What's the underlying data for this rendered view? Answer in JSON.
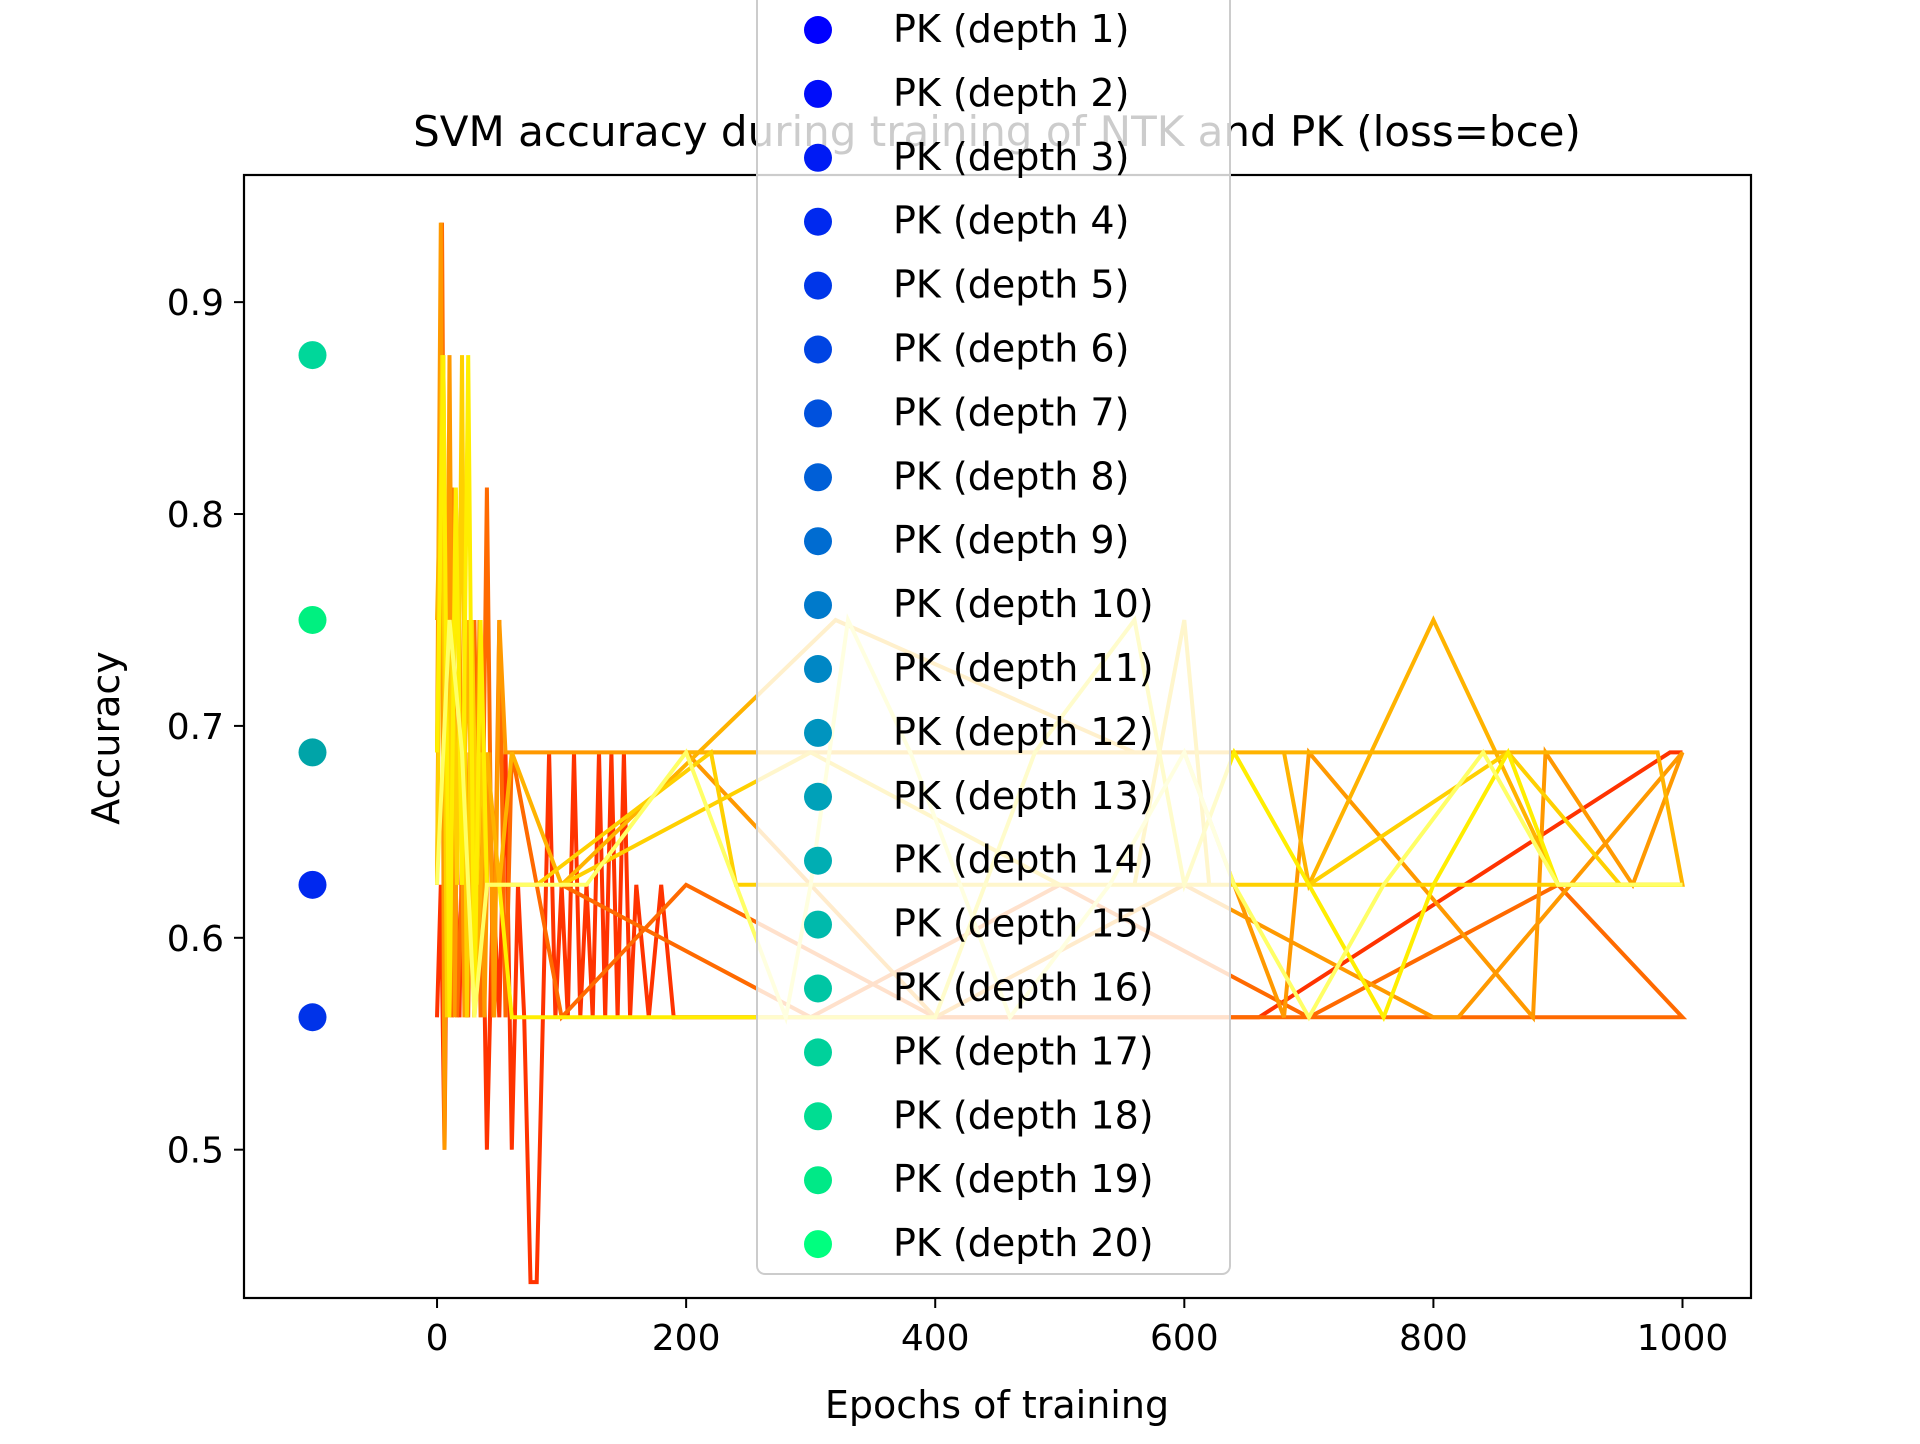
{
  "chart_data": {
    "type": "line",
    "title": "SVM accuracy during training of NTK and PK (loss=bce)",
    "xlabel": "Epochs of training",
    "ylabel": "Accuracy",
    "xlim": [
      -155,
      1055
    ],
    "ylim": [
      0.43,
      0.96
    ],
    "xticks": [
      0,
      200,
      400,
      600,
      800,
      1000
    ],
    "yticks": [
      0.5,
      0.6,
      0.7,
      0.8,
      0.9
    ],
    "grid": false,
    "legend_position": "top-center (overlapping plot)",
    "legend": [
      {
        "label": "PK (depth 1)",
        "color": "#0000ff"
      },
      {
        "label": "PK (depth 2)",
        "color": "#000dfa"
      },
      {
        "label": "PK (depth 3)",
        "color": "#001bf4"
      },
      {
        "label": "PK (depth 4)",
        "color": "#0029ef"
      },
      {
        "label": "PK (depth 5)",
        "color": "#0036e9"
      },
      {
        "label": "PK (depth 6)",
        "color": "#0044e3"
      },
      {
        "label": "PK (depth 7)",
        "color": "#0051dd"
      },
      {
        "label": "PK (depth 8)",
        "color": "#005fd7"
      },
      {
        "label": "PK (depth 9)",
        "color": "#006cd1"
      },
      {
        "label": "PK (depth 10)",
        "color": "#007acb"
      },
      {
        "label": "PK (depth 11)",
        "color": "#0087c5"
      },
      {
        "label": "PK (depth 12)",
        "color": "#0094bf"
      },
      {
        "label": "PK (depth 13)",
        "color": "#00a1b9"
      },
      {
        "label": "PK (depth 14)",
        "color": "#00aeb3"
      },
      {
        "label": "PK (depth 15)",
        "color": "#00baac"
      },
      {
        "label": "PK (depth 16)",
        "color": "#00c6a4"
      },
      {
        "label": "PK (depth 17)",
        "color": "#00d19b"
      },
      {
        "label": "PK (depth 18)",
        "color": "#00dd92"
      },
      {
        "label": "PK (depth 19)",
        "color": "#00e987"
      },
      {
        "label": "PK (depth 20)",
        "color": "#00ff7f"
      }
    ],
    "scatter_points": [
      {
        "x": -100,
        "y": 0.875,
        "color": "#00d79a"
      },
      {
        "x": -100,
        "y": 0.75,
        "color": "#00f080"
      },
      {
        "x": -100,
        "y": 0.6875,
        "color": "#00a4a8"
      },
      {
        "x": -100,
        "y": 0.625,
        "color": "#0028ef"
      },
      {
        "x": -100,
        "y": 0.5625,
        "color": "#0033e9"
      }
    ],
    "series": [
      {
        "color": "#ff3300",
        "x": [
          0,
          3,
          6,
          9,
          12,
          15,
          18,
          21,
          24,
          27,
          30,
          35,
          40,
          45,
          50,
          55,
          60,
          65,
          70,
          75,
          80,
          85,
          90,
          95,
          100,
          105,
          110,
          115,
          120,
          125,
          130,
          135,
          140,
          145,
          150,
          155,
          160,
          170,
          180,
          190,
          660,
          990,
          1000
        ],
        "y": [
          0.5625,
          0.625,
          0.5,
          0.6875,
          0.5625,
          0.625,
          0.5625,
          0.6875,
          0.5625,
          0.625,
          0.5625,
          0.6875,
          0.5,
          0.625,
          0.5625,
          0.6875,
          0.5,
          0.625,
          0.5625,
          0.4375,
          0.4375,
          0.5625,
          0.6875,
          0.5625,
          0.625,
          0.5625,
          0.6875,
          0.5625,
          0.625,
          0.5625,
          0.6875,
          0.5625,
          0.6875,
          0.5625,
          0.6875,
          0.5625,
          0.625,
          0.5625,
          0.625,
          0.5625,
          0.5625,
          0.6875,
          0.6875
        ]
      },
      {
        "color": "#ff6a00",
        "x": [
          0,
          4,
          8,
          12,
          16,
          20,
          25,
          30,
          35,
          40,
          45,
          50,
          55,
          60,
          100,
          200,
          400,
          600,
          800,
          1000,
          900,
          700,
          500,
          300,
          100
        ],
        "y": [
          0.625,
          0.9375,
          0.5625,
          0.8125,
          0.5625,
          0.625,
          0.5625,
          0.75,
          0.5625,
          0.8125,
          0.5625,
          0.75,
          0.5625,
          0.6875,
          0.5625,
          0.625,
          0.5625,
          0.5625,
          0.5625,
          0.5625,
          0.625,
          0.5625,
          0.625,
          0.5625,
          0.625
        ]
      },
      {
        "color": "#ff9900",
        "x": [
          0,
          3,
          6,
          10,
          14,
          18,
          22,
          26,
          30,
          34,
          38,
          42,
          46,
          50,
          55,
          300,
          600,
          680,
          700,
          880,
          890,
          960,
          1000,
          820,
          800,
          600,
          400,
          200,
          100
        ],
        "y": [
          0.6875,
          0.9375,
          0.5,
          0.875,
          0.5625,
          0.75,
          0.5625,
          0.6875,
          0.5625,
          0.75,
          0.5625,
          0.6875,
          0.5625,
          0.75,
          0.6875,
          0.6875,
          0.6875,
          0.5625,
          0.6875,
          0.5625,
          0.6875,
          0.625,
          0.6875,
          0.5625,
          0.5625,
          0.625,
          0.5625,
          0.6875,
          0.6875
        ]
      },
      {
        "color": "#ffb300",
        "x": [
          0,
          5,
          10,
          15,
          20,
          25,
          30,
          40,
          50,
          60,
          100,
          320,
          560,
          680,
          700,
          750,
          800,
          900,
          1000,
          980,
          970,
          900,
          700,
          500,
          200
        ],
        "y": [
          0.75,
          0.875,
          0.5625,
          0.8125,
          0.625,
          0.75,
          0.5625,
          0.6875,
          0.625,
          0.6875,
          0.625,
          0.75,
          0.6875,
          0.6875,
          0.625,
          0.6875,
          0.75,
          0.625,
          0.625,
          0.6875,
          0.6875,
          0.6875,
          0.6875,
          0.6875,
          0.6875
        ]
      },
      {
        "color": "#ffd000",
        "x": [
          0,
          4,
          8,
          12,
          16,
          20,
          24,
          28,
          32,
          36,
          40,
          60,
          80,
          220,
          240,
          330,
          340,
          560,
          600,
          620,
          700,
          800,
          900,
          1000,
          950,
          860,
          700,
          500,
          300,
          100
        ],
        "y": [
          0.625,
          0.875,
          0.5625,
          0.75,
          0.625,
          0.875,
          0.5625,
          0.75,
          0.625,
          0.6875,
          0.625,
          0.625,
          0.625,
          0.6875,
          0.625,
          0.625,
          0.625,
          0.625,
          0.75,
          0.625,
          0.625,
          0.625,
          0.625,
          0.625,
          0.625,
          0.6875,
          0.625,
          0.625,
          0.6875,
          0.625
        ]
      },
      {
        "color": "#ffee00",
        "x": [
          0,
          5,
          10,
          15,
          20,
          25,
          30,
          35,
          40,
          50,
          60,
          90,
          200,
          300,
          400,
          480,
          560,
          600,
          640,
          700,
          760,
          800,
          860,
          900,
          1000
        ],
        "y": [
          0.6875,
          0.875,
          0.5625,
          0.8125,
          0.625,
          0.875,
          0.5625,
          0.75,
          0.625,
          0.625,
          0.5625,
          0.5625,
          0.5625,
          0.5625,
          0.5625,
          0.6875,
          0.75,
          0.625,
          0.6875,
          0.625,
          0.5625,
          0.625,
          0.6875,
          0.625,
          0.625
        ]
      },
      {
        "color": "#ffff66",
        "x": [
          0,
          10,
          20,
          30,
          40,
          60,
          120,
          200,
          280,
          300,
          330,
          380,
          460,
          540,
          600,
          640,
          700,
          760,
          840,
          900,
          1000
        ],
        "y": [
          0.625,
          0.75,
          0.6875,
          0.5625,
          0.625,
          0.625,
          0.625,
          0.6875,
          0.5625,
          0.625,
          0.75,
          0.6875,
          0.5625,
          0.625,
          0.6875,
          0.625,
          0.5625,
          0.625,
          0.6875,
          0.625,
          0.625
        ]
      }
    ]
  }
}
